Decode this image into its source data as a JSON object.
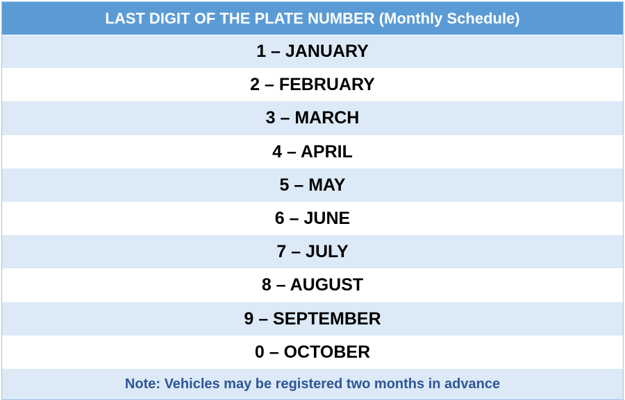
{
  "header": {
    "title": "LAST DIGIT OF THE PLATE NUMBER (Monthly Schedule)"
  },
  "rows": [
    {
      "text": "1 – JANUARY"
    },
    {
      "text": "2 – FEBRUARY"
    },
    {
      "text": "3 – MARCH"
    },
    {
      "text": "4 – APRIL"
    },
    {
      "text": "5 – MAY"
    },
    {
      "text": "6 – JUNE"
    },
    {
      "text": "7 – JULY"
    },
    {
      "text": "8 – AUGUST"
    },
    {
      "text": "9 – SEPTEMBER"
    },
    {
      "text": "0 – OCTOBER"
    }
  ],
  "note": {
    "text": "Note: Vehicles may be registered two months in advance"
  },
  "colors": {
    "header_bg": "#5b9bd5",
    "band_bg": "#dce9f6",
    "note_text": "#2e5597"
  }
}
